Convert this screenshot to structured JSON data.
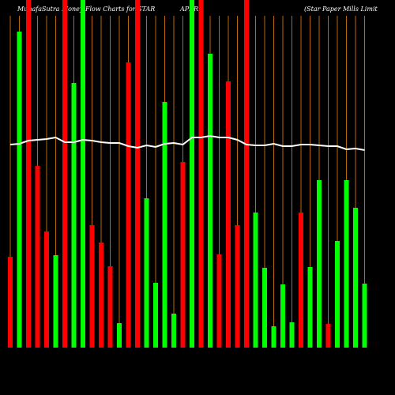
{
  "chart_data": {
    "type": "bar",
    "title": "MunafaSutra  Money Flow  Charts for STAR",
    "title_middle": "APER",
    "title_right": "(Star Paper Mills Limit",
    "categories": [
      null,
      null,
      null,
      null,
      null,
      null,
      null,
      null,
      null,
      null,
      null,
      null,
      null,
      null,
      null,
      null,
      null,
      null,
      null,
      null,
      null,
      null,
      null,
      null,
      null,
      null,
      null,
      null,
      null,
      null,
      null,
      null,
      null,
      null,
      null,
      null,
      null,
      null,
      null,
      null
    ],
    "series": [
      {
        "name": "money flow",
        "type": "bar",
        "colors": [
          "#ff0000",
          "#00ff00",
          "#ff0000",
          "#ff0000",
          "#ff0000",
          "#00ff00",
          "#ff0000",
          "#00ff00",
          "#00ff00",
          "#ff0000",
          "#ff0000",
          "#ff0000",
          "#00ff00",
          "#ff0000",
          "#ff0000",
          "#00ff00",
          "#00ff00",
          "#00ff00",
          "#00ff00",
          "#ff0000",
          "#00ff00",
          "#ff0000",
          "#00ff00",
          "#ff0000",
          "#ff0000",
          "#ff0000",
          "#ff0000",
          "#00ff00",
          "#00ff00",
          "#00ff00",
          "#00ff00",
          "#00ff00",
          "#ff0000",
          "#00ff00",
          "#00ff00",
          "#ff0000",
          "#00ff00",
          "#00ff00",
          "#00ff00",
          "#00ff00"
        ],
        "values": [
          115,
          400,
          440,
          230,
          147,
          117,
          440,
          335,
          440,
          155,
          133,
          103,
          31,
          361,
          440,
          189,
          82,
          311,
          43,
          235,
          440,
          440,
          372,
          118,
          337,
          155,
          440,
          171,
          101,
          27,
          80,
          32,
          171,
          102,
          212,
          30,
          135,
          212,
          177,
          81
        ]
      },
      {
        "name": "trend",
        "type": "line",
        "color": "#ffffff",
        "values": [
          257,
          258,
          262,
          263,
          264,
          266,
          260,
          260,
          263,
          262,
          260,
          259,
          259,
          255,
          253,
          256,
          254,
          258,
          259,
          257,
          266,
          266,
          268,
          266,
          266,
          263,
          257,
          256,
          256,
          258,
          255,
          255,
          257,
          257,
          256,
          255,
          255,
          251,
          252,
          250
        ]
      }
    ],
    "ylim": [
      0,
      440
    ],
    "guide_color": "#b8660b"
  }
}
